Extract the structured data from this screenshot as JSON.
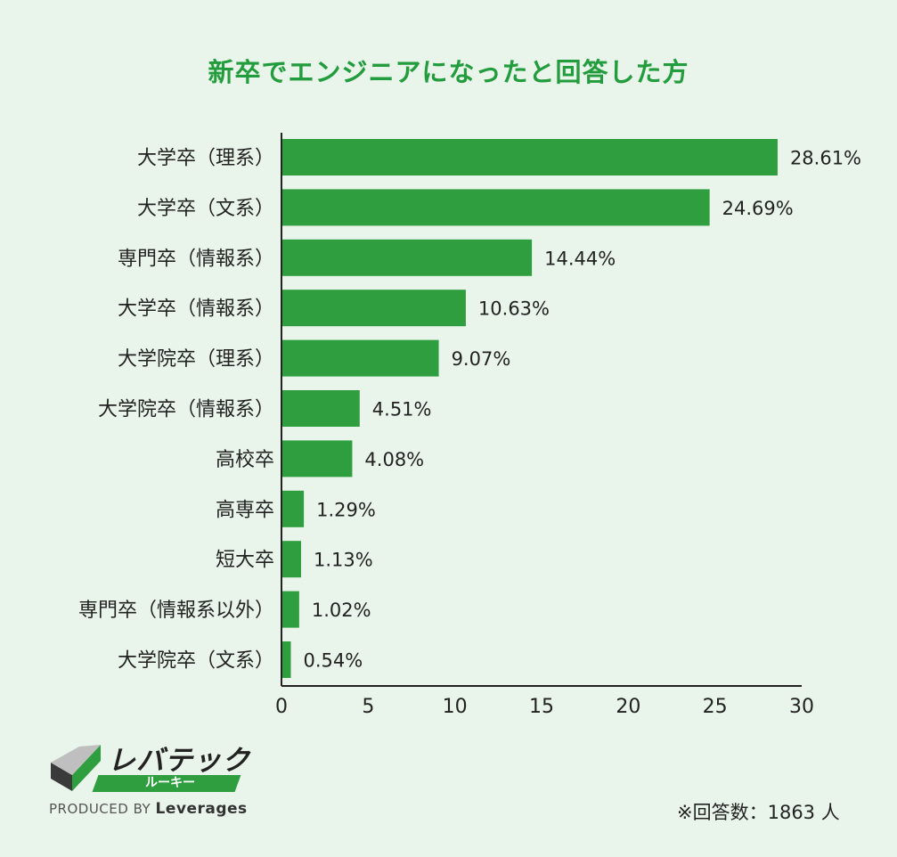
{
  "chart_data": {
    "type": "bar",
    "orientation": "horizontal",
    "title": "新卒でエンジニアになったと回答した方",
    "categories": [
      "大学卒（理系）",
      "大学卒（文系）",
      "専門卒（情報系）",
      "大学卒（情報系）",
      "大学院卒（理系）",
      "大学院卒（情報系）",
      "高校卒",
      "高専卒",
      "短大卒",
      "専門卒（情報系以外）",
      "大学院卒（文系）"
    ],
    "values": [
      28.61,
      24.69,
      14.44,
      10.63,
      9.07,
      4.51,
      4.08,
      1.29,
      1.13,
      1.02,
      0.54
    ],
    "value_labels": [
      "28.61%",
      "24.69%",
      "14.44%",
      "10.63%",
      "9.07%",
      "4.51%",
      "4.08%",
      "1.29%",
      "1.13%",
      "1.02%",
      "0.54%"
    ],
    "xlim": [
      0,
      30
    ],
    "xticks": [
      0,
      5,
      10,
      15,
      20,
      25,
      30
    ],
    "xlabel": "",
    "ylabel": "",
    "grid": false,
    "bar_color": "#2e9e3e"
  },
  "logo": {
    "name": "レバテック",
    "sub": "ルーキー",
    "credit_prefix": "PRODUCED BY",
    "credit_brand": "Leverages"
  },
  "footnote": "※回答数：1863 人"
}
